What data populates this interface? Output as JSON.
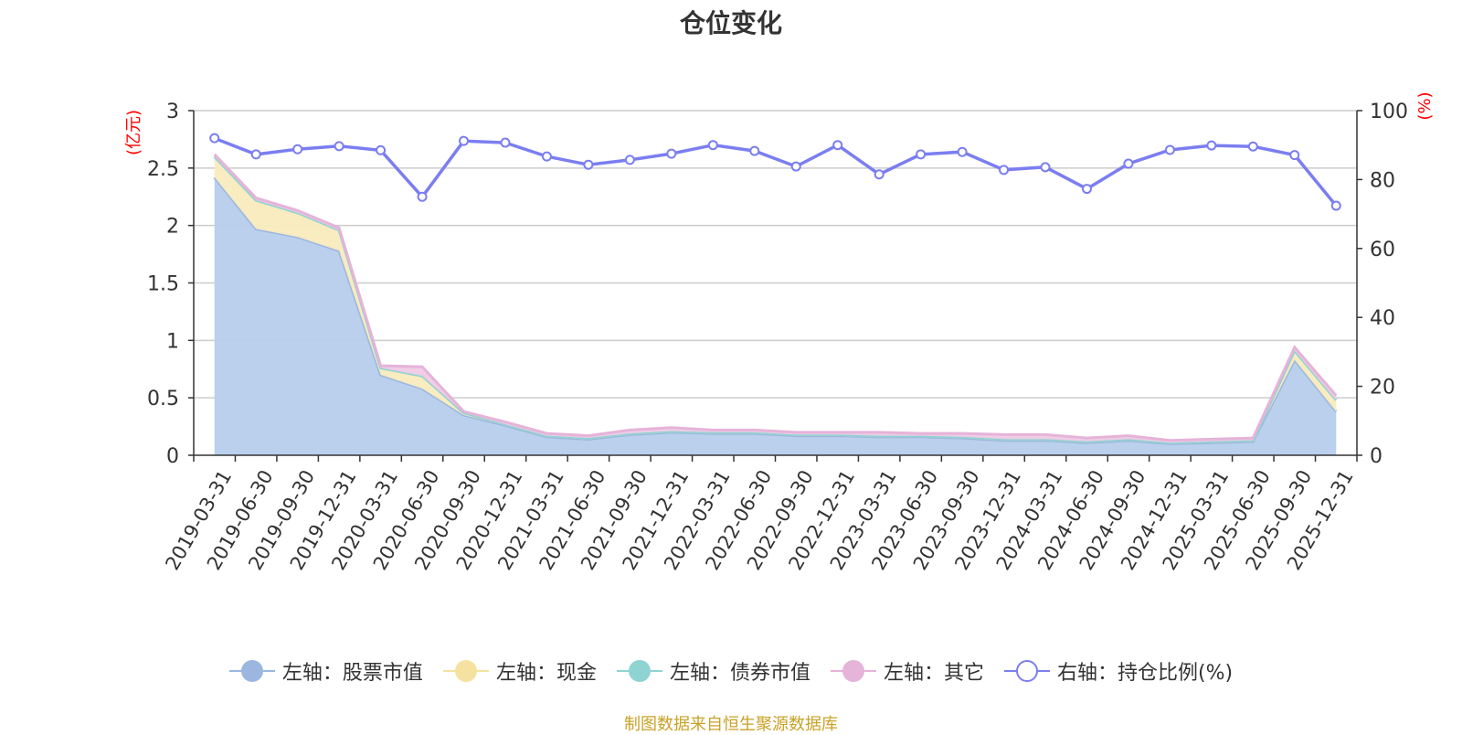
{
  "chart_data": {
    "type": "area",
    "title": "仓位变化",
    "left_axis_unit": "(亿元)",
    "right_axis_unit": "(%)",
    "left_ylim": [
      0,
      3
    ],
    "left_yticks": [
      "0",
      "0.5",
      "1",
      "1.5",
      "2",
      "2.5",
      "3"
    ],
    "right_ylim": [
      0,
      100
    ],
    "right_yticks": [
      "0",
      "20",
      "40",
      "60",
      "80",
      "100"
    ],
    "grid": true,
    "legend_position": "bottom",
    "categories": [
      "2019-03-31",
      "2019-06-30",
      "2019-09-30",
      "2019-12-31",
      "2020-03-31",
      "2020-06-30",
      "2020-09-30",
      "2020-12-31",
      "2021-03-31",
      "2021-06-30",
      "2021-09-30",
      "2021-12-31",
      "2022-03-31",
      "2022-06-30",
      "2022-09-30",
      "2022-12-31",
      "2023-03-31",
      "2023-06-30",
      "2023-09-30",
      "2023-12-31",
      "2024-03-31",
      "2024-06-30",
      "2024-09-30",
      "2024-12-31",
      "2025-03-31",
      "2025-06-30",
      "2025-09-30",
      "2025-12-31"
    ],
    "series": [
      {
        "name": "左轴：股票市值",
        "axis": "left",
        "stacked": true,
        "color": "#9bb7e0",
        "fill": "#b6cdeb",
        "values": [
          2.42,
          1.97,
          1.9,
          1.78,
          0.7,
          0.58,
          0.35,
          0.26,
          0.16,
          0.14,
          0.18,
          0.2,
          0.19,
          0.19,
          0.17,
          0.17,
          0.16,
          0.16,
          0.15,
          0.13,
          0.13,
          0.11,
          0.13,
          0.1,
          0.11,
          0.12,
          0.83,
          0.38
        ]
      },
      {
        "name": "左轴：现金",
        "axis": "left",
        "stacked": true,
        "color": "#f5e2a0",
        "fill": "#f9ebbd",
        "values": [
          0.18,
          0.25,
          0.21,
          0.18,
          0.06,
          0.11,
          0.02,
          0.01,
          0.01,
          0.01,
          0.01,
          0.01,
          0.01,
          0.01,
          0.01,
          0.01,
          0.01,
          0.01,
          0.01,
          0.01,
          0.01,
          0.01,
          0.01,
          0.01,
          0.01,
          0.01,
          0.08,
          0.1
        ]
      },
      {
        "name": "左轴：债券市值",
        "axis": "left",
        "stacked": true,
        "color": "#8fd3d3",
        "fill": "#a9dede",
        "values": [
          0,
          0,
          0,
          0,
          0,
          0,
          0,
          0,
          0,
          0,
          0,
          0,
          0,
          0,
          0,
          0,
          0,
          0,
          0,
          0,
          0,
          0,
          0,
          0,
          0,
          0,
          0,
          0
        ]
      },
      {
        "name": "左轴：其它",
        "axis": "left",
        "stacked": true,
        "color": "#e6b3d9",
        "fill": "#efcbe6",
        "values": [
          0.02,
          0.02,
          0.02,
          0.02,
          0.02,
          0.08,
          0.01,
          0.02,
          0.02,
          0.02,
          0.03,
          0.03,
          0.02,
          0.02,
          0.02,
          0.02,
          0.03,
          0.02,
          0.03,
          0.04,
          0.04,
          0.03,
          0.03,
          0.02,
          0.02,
          0.02,
          0.03,
          0.04
        ]
      },
      {
        "name": "右轴：持仓比例(%)",
        "axis": "right",
        "type": "line",
        "color": "#7b7ef0",
        "values": [
          92.0,
          87.3,
          88.8,
          89.7,
          88.5,
          75.0,
          91.2,
          90.7,
          86.7,
          84.3,
          85.7,
          87.5,
          90.0,
          88.3,
          83.8,
          90.0,
          81.5,
          87.3,
          88.0,
          82.8,
          83.6,
          77.3,
          84.6,
          88.6,
          89.9,
          89.6,
          87.1,
          72.4
        ]
      }
    ]
  },
  "source_note": "制图数据来自恒生聚源数据库"
}
